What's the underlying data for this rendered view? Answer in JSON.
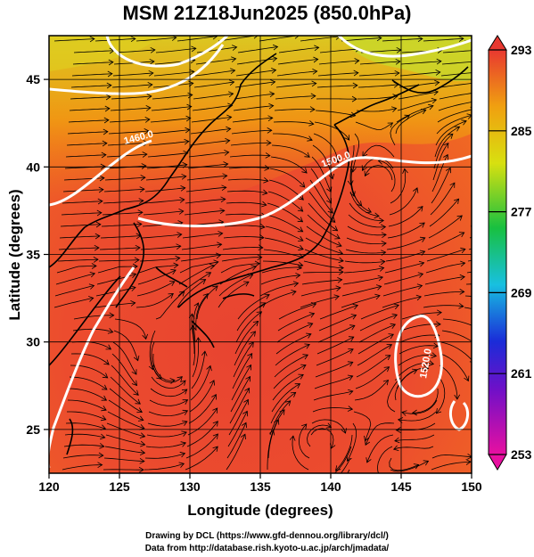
{
  "title": "MSM 21Z18Jun2025 (850.0hPa)",
  "map": {
    "xlabel": "Longitude (degrees)",
    "ylabel": "Latitude  (degrees)",
    "xlim": [
      120,
      150
    ],
    "ylim": [
      22.5,
      47.5
    ],
    "xticks": [
      "120",
      "125",
      "130",
      "135",
      "140",
      "145",
      "150"
    ],
    "yticks": [
      "25",
      "30",
      "35",
      "40",
      "45"
    ],
    "contour_labels": [
      "1460.0",
      "1500.0",
      "1520.0"
    ]
  },
  "colorbar": {
    "ticks": [
      "293",
      "285",
      "277",
      "269",
      "261",
      "253"
    ],
    "range": [
      253,
      293
    ],
    "colors": [
      "#e8109a",
      "#1a2cd8",
      "#18c8e0",
      "#18c040",
      "#d8e010",
      "#f0a010",
      "#e83830"
    ]
  },
  "footer": {
    "line1": "Drawing by DCL (https://www.gfd-dennou.org/library/dcl/)",
    "line2": "Data from http://database.rish.kyoto-u.ac.jp/arch/jmadata/"
  }
}
